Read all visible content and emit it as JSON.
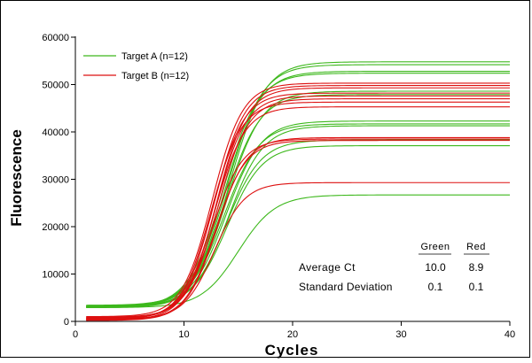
{
  "chart_data": {
    "type": "line",
    "xlabel": "Cycles",
    "ylabel": "Fluorescence",
    "xlim": [
      0,
      40
    ],
    "ylim": [
      0,
      60000
    ],
    "x_ticks": [
      0,
      10,
      20,
      30,
      40
    ],
    "y_ticks": [
      0,
      10000,
      20000,
      30000,
      40000,
      50000,
      60000
    ],
    "x_tick_labels": [
      "0",
      "10",
      "20",
      "30",
      "40"
    ],
    "y_tick_labels": [
      "0",
      "10000",
      "20000",
      "30000",
      "40000",
      "50000",
      "60000"
    ],
    "grid": false,
    "legend_position": "top-left",
    "x_range_of_curves": [
      1,
      40
    ],
    "series": [
      {
        "name": "Target A (n=12)",
        "color": "#3db81c",
        "curves": [
          {
            "baseline": 3300,
            "plateau": 54800,
            "midpoint": 14.2,
            "slope": 1.6
          },
          {
            "baseline": 3200,
            "plateau": 54200,
            "midpoint": 14.0,
            "slope": 1.6
          },
          {
            "baseline": 3100,
            "plateau": 52800,
            "midpoint": 13.8,
            "slope": 1.6
          },
          {
            "baseline": 3000,
            "plateau": 52400,
            "midpoint": 13.6,
            "slope": 1.6
          },
          {
            "baseline": 3400,
            "plateau": 48600,
            "midpoint": 14.0,
            "slope": 1.6
          },
          {
            "baseline": 3200,
            "plateau": 47900,
            "midpoint": 13.8,
            "slope": 1.6
          },
          {
            "baseline": 3000,
            "plateau": 42300,
            "midpoint": 13.9,
            "slope": 1.6
          },
          {
            "baseline": 3100,
            "plateau": 41700,
            "midpoint": 13.7,
            "slope": 1.6
          },
          {
            "baseline": 2900,
            "plateau": 41300,
            "midpoint": 14.1,
            "slope": 1.6
          },
          {
            "baseline": 3000,
            "plateau": 38300,
            "midpoint": 13.9,
            "slope": 1.6
          },
          {
            "baseline": 3200,
            "plateau": 37100,
            "midpoint": 14.0,
            "slope": 1.6
          },
          {
            "baseline": 2900,
            "plateau": 26700,
            "midpoint": 15.0,
            "slope": 1.7
          }
        ]
      },
      {
        "name": "Target B (n=12)",
        "color": "#dd1010",
        "curves": [
          {
            "baseline": 1000,
            "plateau": 50300,
            "midpoint": 12.6,
            "slope": 1.4
          },
          {
            "baseline": 600,
            "plateau": 49800,
            "midpoint": 12.8,
            "slope": 1.4
          },
          {
            "baseline": 800,
            "plateau": 49300,
            "midpoint": 13.0,
            "slope": 1.4
          },
          {
            "baseline": 500,
            "plateau": 48200,
            "midpoint": 12.7,
            "slope": 1.4
          },
          {
            "baseline": 300,
            "plateau": 47600,
            "midpoint": 12.9,
            "slope": 1.4
          },
          {
            "baseline": 900,
            "plateau": 47000,
            "midpoint": 13.1,
            "slope": 1.4
          },
          {
            "baseline": 400,
            "plateau": 46300,
            "midpoint": 12.5,
            "slope": 1.4
          },
          {
            "baseline": 700,
            "plateau": 45300,
            "midpoint": 12.8,
            "slope": 1.4
          },
          {
            "baseline": 200,
            "plateau": 38800,
            "midpoint": 13.0,
            "slope": 1.4
          },
          {
            "baseline": 600,
            "plateau": 38500,
            "midpoint": 12.6,
            "slope": 1.4
          },
          {
            "baseline": 300,
            "plateau": 38200,
            "midpoint": 12.9,
            "slope": 1.4
          },
          {
            "baseline": 500,
            "plateau": 29300,
            "midpoint": 12.8,
            "slope": 1.4
          }
        ]
      }
    ],
    "stats_table": {
      "headers": [
        "Green",
        "Red"
      ],
      "rows": [
        {
          "label": "Average Ct",
          "values": [
            "10.0",
            "8.9"
          ]
        },
        {
          "label": "Standard Deviation",
          "values": [
            "0.1",
            "0.1"
          ]
        }
      ]
    }
  }
}
